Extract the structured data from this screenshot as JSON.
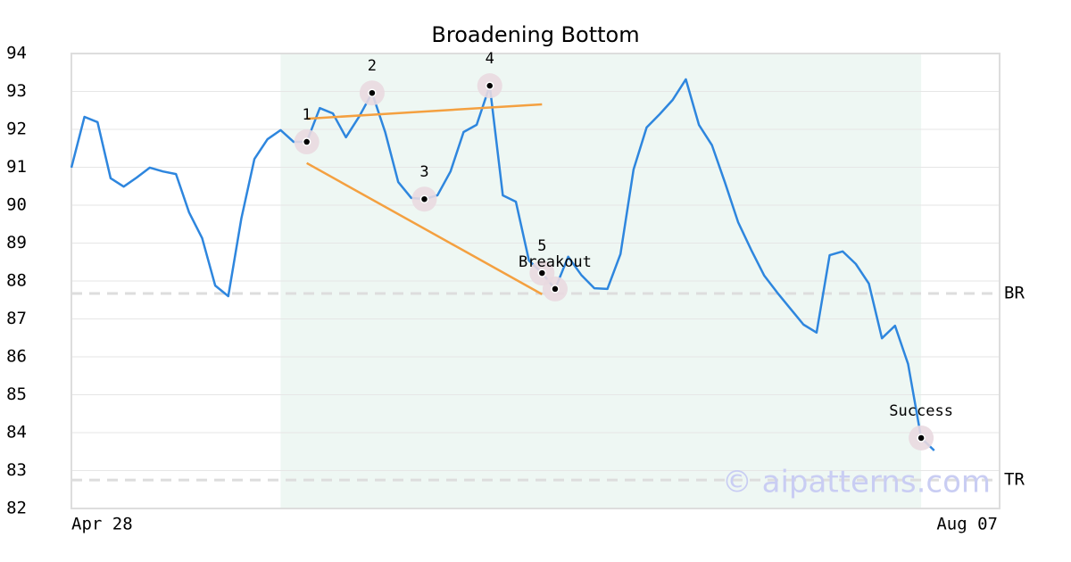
{
  "chart_data": {
    "type": "line",
    "title": "Broadening Bottom",
    "categories": [
      "Apr 28",
      null,
      null,
      null,
      null,
      null,
      null,
      null,
      null,
      null,
      null,
      null,
      null,
      null,
      null,
      null,
      null,
      null,
      null,
      null,
      null,
      null,
      null,
      null,
      null,
      null,
      null,
      null,
      null,
      null,
      null,
      null,
      null,
      null,
      null,
      null,
      null,
      null,
      null,
      null,
      null,
      null,
      null,
      null,
      null,
      null,
      null,
      null,
      null,
      null,
      null,
      null,
      null,
      null,
      null,
      null,
      null,
      null,
      null,
      null,
      null,
      null,
      null,
      null,
      null,
      null,
      null,
      null,
      null,
      null,
      null,
      "Aug 07"
    ],
    "values": [
      90.99,
      92.33,
      92.19,
      90.71,
      90.49,
      90.73,
      90.99,
      90.89,
      90.82,
      89.81,
      89.13,
      87.88,
      87.6,
      89.65,
      91.22,
      91.74,
      91.98,
      91.67,
      91.67,
      92.56,
      92.42,
      91.79,
      92.33,
      92.96,
      91.93,
      90.61,
      90.19,
      90.16,
      90.26,
      90.89,
      91.93,
      92.12,
      93.15,
      90.26,
      90.09,
      88.54,
      88.21,
      87.79,
      88.64,
      88.16,
      87.81,
      87.79,
      88.71,
      90.94,
      92.05,
      92.4,
      92.78,
      93.32,
      92.12,
      91.58,
      90.59,
      89.55,
      88.82,
      88.14,
      87.69,
      87.27,
      86.85,
      86.64,
      88.68,
      88.78,
      88.45,
      87.93,
      86.49,
      86.82,
      85.81,
      83.86,
      83.53,
      null,
      null,
      null,
      null,
      null
    ],
    "color": "#2e86de",
    "ylim": [
      82,
      94
    ],
    "yticks": [
      82,
      83,
      84,
      85,
      86,
      87,
      88,
      89,
      90,
      91,
      92,
      93,
      94
    ],
    "grid": true,
    "highlight": [
      16,
      65
    ],
    "highlight_color": "#eef7f3",
    "points": [
      {
        "label": "1",
        "index": 18
      },
      {
        "label": "2",
        "index": 23
      },
      {
        "label": "3",
        "index": 27
      },
      {
        "label": "4",
        "index": 32
      },
      {
        "label": "5",
        "index": 36
      },
      {
        "label": "Breakout",
        "index": 37
      },
      {
        "label": "Success",
        "index": 65
      }
    ],
    "trendlines": [
      {
        "x": [
          18,
          36
        ],
        "y": [
          92.28,
          92.66
        ]
      },
      {
        "x": [
          18,
          36
        ],
        "y": [
          91.11,
          87.65
        ]
      }
    ],
    "trendline_color": "#f4a040",
    "levels": [
      {
        "label": "BR",
        "value": 87.67
      },
      {
        "label": "TR",
        "value": 82.75
      }
    ],
    "watermark": "© aipatterns.com"
  }
}
